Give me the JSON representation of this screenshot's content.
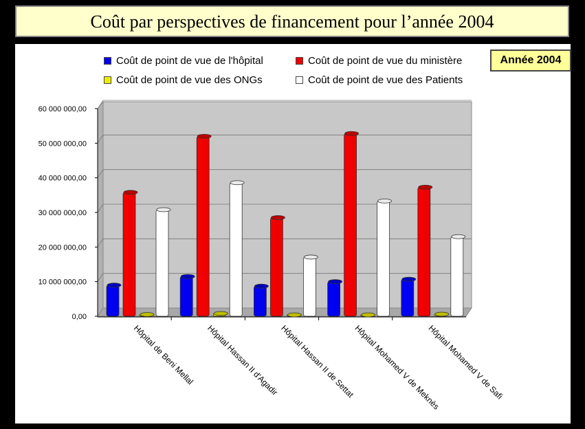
{
  "slide": {
    "title": "Coût par perspectives de financement pour l’année 2004",
    "year_label": "Année 2004"
  },
  "chart_data": {
    "type": "bar",
    "title": "Coût par perspectives de financement pour l’année 2004",
    "xlabel": "",
    "ylabel": "",
    "ylim": [
      0,
      60000000
    ],
    "grid": true,
    "legend": "top",
    "y_ticks": [
      "0,00",
      "10 000 000,00",
      "20 000 000,00",
      "30 000 000,00",
      "40 000 000,00",
      "50 000 000,00",
      "60 000 000,00"
    ],
    "categories": [
      "Hôpital de Beni Mellal",
      "Hôpital Hassan II d'Agadir",
      "Hôpital Hassan II de Settat",
      "Hôpital Mohamed V de Meknès",
      "Hôpital Mohamed V de Safi"
    ],
    "series": [
      {
        "name": "Coût de point de vue de l'hôpital",
        "color": "#0000ee",
        "values": [
          9000000,
          11500000,
          8700000,
          10000000,
          10700000
        ]
      },
      {
        "name": "Coût de point de vue du ministère",
        "color": "#ee0000",
        "values": [
          35800000,
          52000000,
          28500000,
          52800000,
          37300000
        ]
      },
      {
        "name": "Coût de point de vue des ONGs",
        "color": "#eeee00",
        "values": [
          500000,
          800000,
          400000,
          200000,
          600000
        ]
      },
      {
        "name": "Coût de point de vue des Patients",
        "color": "#ffffff",
        "values": [
          30800000,
          38600000,
          17100000,
          33300000,
          23000000
        ]
      }
    ]
  }
}
